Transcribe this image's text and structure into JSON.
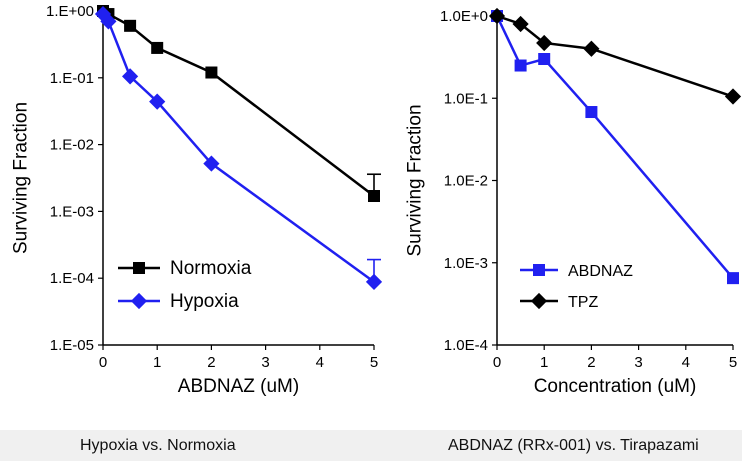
{
  "chart_data": [
    {
      "type": "line",
      "yscale": "log",
      "xlabel": "ABDNAZ (uM)",
      "ylabel": "Surviving Fraction",
      "xlim": [
        0,
        5
      ],
      "ylim": [
        1e-05,
        1
      ],
      "x_ticks": [
        "0",
        "1",
        "2",
        "3",
        "4",
        "5"
      ],
      "y_ticks": [
        "1.E+00",
        "1.E-01",
        "1.E-02",
        "1.E-03",
        "1.E-04",
        "1.E-05"
      ],
      "legend_position": "bottom-left",
      "series": [
        {
          "name": "Normoxia",
          "color": "#000000",
          "marker": "square",
          "x": [
            0,
            0.1,
            0.5,
            1,
            2,
            5
          ],
          "y": [
            1.0,
            0.9,
            0.6,
            0.28,
            0.12,
            0.0017
          ],
          "error_upper": [
            null,
            null,
            null,
            null,
            null,
            0.0036
          ]
        },
        {
          "name": "Hypoxia",
          "color": "#2020f0",
          "marker": "diamond",
          "x": [
            0,
            0.1,
            0.5,
            1,
            2,
            5
          ],
          "y": [
            0.9,
            0.7,
            0.105,
            0.044,
            0.0052,
            8.8e-05
          ],
          "error_upper": [
            null,
            null,
            null,
            null,
            null,
            0.00019
          ]
        }
      ],
      "caption": "Hypoxia vs. Normoxia"
    },
    {
      "type": "line",
      "yscale": "log",
      "xlabel": "Concentration (uM)",
      "ylabel": "Surviving Fraction",
      "xlim": [
        0,
        5
      ],
      "ylim": [
        0.0001,
        1
      ],
      "x_ticks": [
        "0",
        "1",
        "2",
        "3",
        "4",
        "5"
      ],
      "y_ticks": [
        "1.0E+0",
        "1.0E-1",
        "1.0E-2",
        "1.0E-3",
        "1.0E-4"
      ],
      "legend_position": "bottom-left",
      "series": [
        {
          "name": "ABDNAZ",
          "color": "#2020f0",
          "marker": "square",
          "x": [
            0,
            0.5,
            1,
            2,
            5
          ],
          "y": [
            1.0,
            0.25,
            0.3,
            0.068,
            0.00065
          ]
        },
        {
          "name": "TPZ",
          "color": "#000000",
          "marker": "diamond",
          "x": [
            0,
            0.5,
            1,
            2,
            5
          ],
          "y": [
            1.0,
            0.8,
            0.47,
            0.4,
            0.105
          ]
        }
      ],
      "caption": "ABDNAZ (RRx-001) vs. Tirapazami"
    }
  ]
}
